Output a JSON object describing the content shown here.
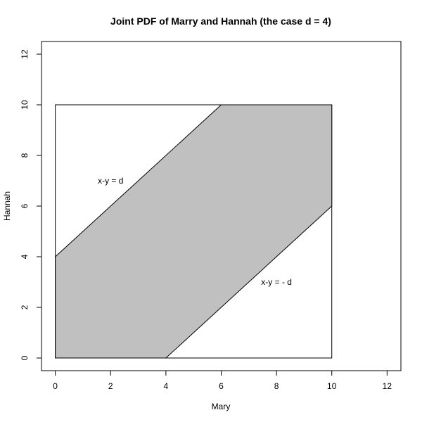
{
  "chart_data": {
    "type": "area",
    "title": "Joint PDF of Marry and Hannah (the case d = 4)",
    "xlabel": "Mary",
    "ylabel": "Hannah",
    "xlim": [
      -0.5,
      12.5
    ],
    "ylim": [
      -0.5,
      12.5
    ],
    "xticks": [
      0,
      2,
      4,
      6,
      8,
      10,
      12
    ],
    "yticks": [
      0,
      2,
      4,
      6,
      8,
      10,
      12
    ],
    "grid": false,
    "legend": "none",
    "square": {
      "xmin": 0,
      "ymin": 0,
      "xmax": 10,
      "ymax": 10
    },
    "region": {
      "fill": "#c0c0c0",
      "x": [
        0,
        4,
        10,
        10,
        6,
        0
      ],
      "y": [
        0,
        0,
        6,
        10,
        10,
        4
      ]
    },
    "annotations": [
      {
        "text": "x-y =  d",
        "x": 2.0,
        "y": 7.0
      },
      {
        "text": "x-y = - d",
        "x": 8.0,
        "y": 3.0
      }
    ]
  }
}
